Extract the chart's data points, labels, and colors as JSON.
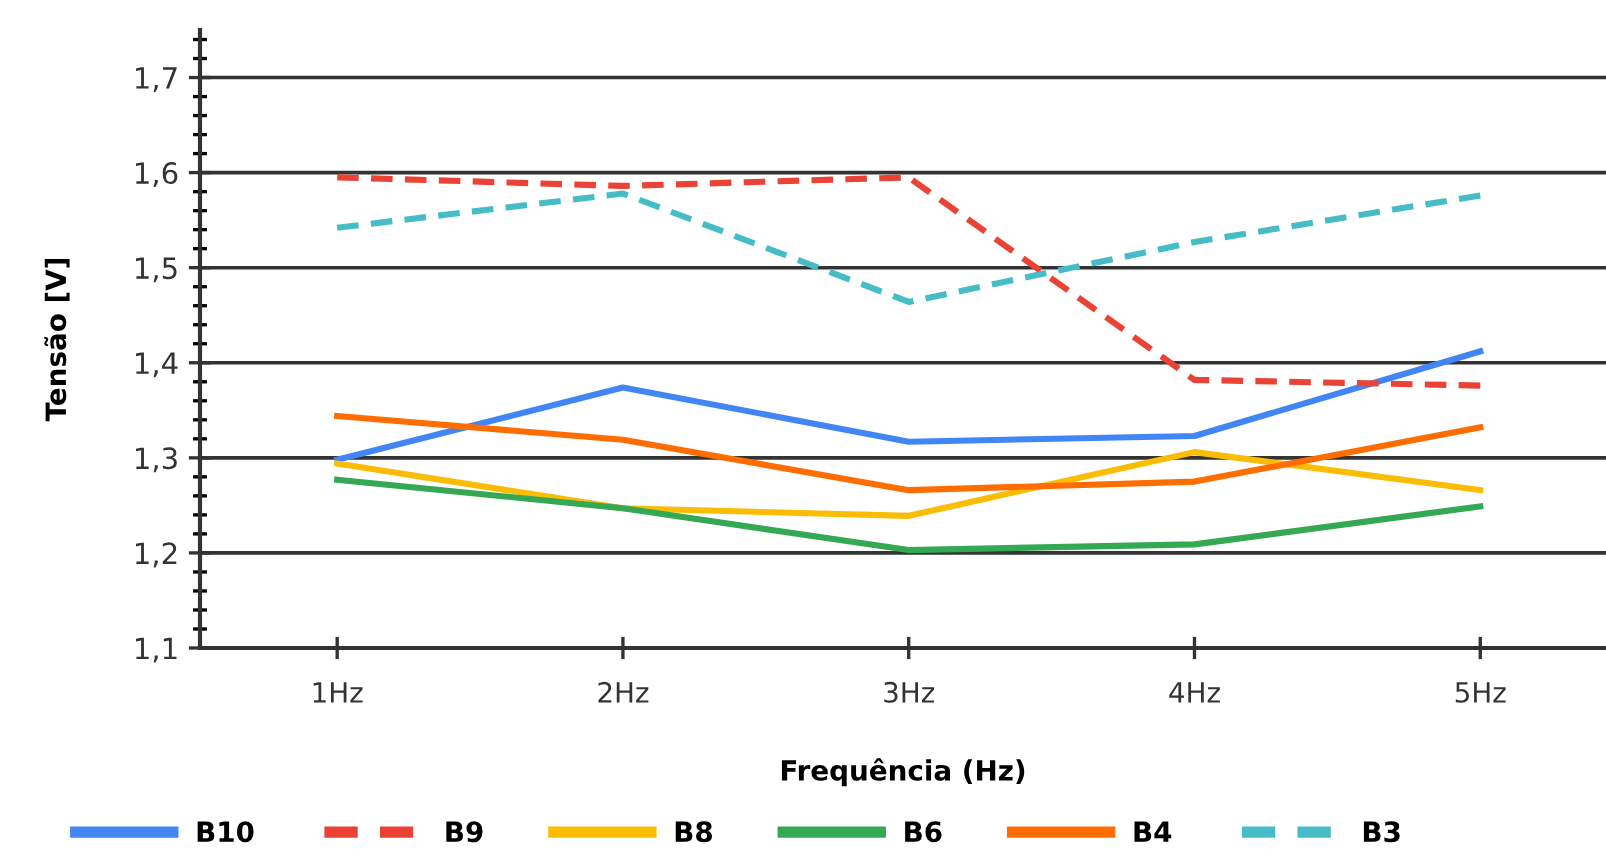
{
  "chart_data": {
    "type": "line",
    "xlabel": "Frequência (Hz)",
    "ylabel": "Tensão [V]",
    "categories": [
      "1Hz",
      "2Hz",
      "3Hz",
      "4Hz",
      "5Hz"
    ],
    "ylim": [
      1.1,
      1.75
    ],
    "yticks": [
      {
        "value": 1.1,
        "label": "1,1"
      },
      {
        "value": 1.2,
        "label": "1,2"
      },
      {
        "value": 1.3,
        "label": "1,3"
      },
      {
        "value": 1.4,
        "label": "1,4"
      },
      {
        "value": 1.5,
        "label": "1,5"
      },
      {
        "value": 1.6,
        "label": "1,6"
      },
      {
        "value": 1.7,
        "label": "1,7"
      }
    ],
    "grid": "y",
    "legend": "bottom",
    "series": [
      {
        "name": "B10",
        "color": "#4285f4",
        "line_style": "solid",
        "values": [
          1.298,
          1.374,
          1.317,
          1.323,
          1.412
        ]
      },
      {
        "name": "B9",
        "color": "#ea4335",
        "line_style": "dashed",
        "values": [
          1.595,
          1.586,
          1.595,
          1.382,
          1.376
        ]
      },
      {
        "name": "B8",
        "color": "#fbbc04",
        "line_style": "solid",
        "values": [
          1.294,
          1.247,
          1.239,
          1.306,
          1.266
        ]
      },
      {
        "name": "B6",
        "color": "#34a853",
        "line_style": "solid",
        "values": [
          1.277,
          1.247,
          1.203,
          1.209,
          1.249
        ]
      },
      {
        "name": "B4",
        "color": "#ff6d01",
        "line_style": "solid",
        "values": [
          1.344,
          1.319,
          1.266,
          1.275,
          1.332
        ]
      },
      {
        "name": "B3",
        "color": "#46bdc6",
        "line_style": "dashed",
        "values": [
          1.542,
          1.578,
          1.464,
          1.527,
          1.576
        ]
      }
    ]
  }
}
